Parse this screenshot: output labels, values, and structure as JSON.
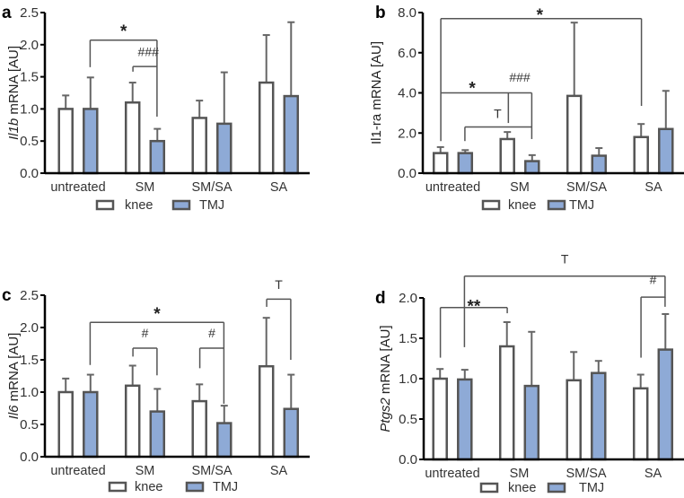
{
  "colors": {
    "knee": "#ffffff",
    "tmj": "#8eaad6",
    "bar_stroke": "#555555",
    "error": "#666666",
    "axis": "#000000"
  },
  "chart_data": [
    {
      "panel": "a",
      "type": "bar",
      "ylabel_italic": "Il1b",
      "ylabel_rest": " mRNA [AU]",
      "ylim": [
        0,
        2.5
      ],
      "yticks": [
        0,
        0.5,
        1.0,
        1.5,
        2.0,
        2.5
      ],
      "ytick_labels": [
        "0.0",
        "0.5",
        "1.0",
        "1.5",
        "2.0",
        "2.5"
      ],
      "categories": [
        "untreated",
        "SM",
        "SM/SA",
        "SA"
      ],
      "series": [
        {
          "name": "knee",
          "values": [
            1.0,
            1.1,
            0.86,
            1.41
          ],
          "error_top": [
            1.21,
            1.41,
            1.13,
            2.15
          ]
        },
        {
          "name": "TMJ",
          "values": [
            1.0,
            0.5,
            0.77,
            1.2
          ],
          "error_top": [
            1.49,
            0.69,
            1.57,
            2.35
          ]
        }
      ],
      "legend": [
        "knee",
        "TMJ"
      ],
      "annotations": [
        {
          "label": "*",
          "x1": 0.18,
          "x2": 1.18,
          "y": 2.07,
          "y1": 1.65,
          "y2": 0.88,
          "ly": 2.25,
          "style": "star"
        },
        {
          "label": "###",
          "x1": 0.82,
          "x2": 1.18,
          "y": 1.66,
          "y1": 1.58,
          "y2": null,
          "ly": 1.82,
          "lx": 1.05
        }
      ]
    },
    {
      "panel": "b",
      "type": "bar",
      "ylabel_italic": "",
      "ylabel_rest": "Il1-ra mRNA [AU]",
      "ylim": [
        0,
        8.0
      ],
      "yticks": [
        0,
        2,
        4,
        6,
        8
      ],
      "ytick_labels": [
        "0.0",
        "2.0",
        "4.0",
        "6.0",
        "8.0"
      ],
      "categories": [
        "untreated",
        "SM",
        "SM/SA",
        "SA"
      ],
      "series": [
        {
          "name": "knee",
          "values": [
            1.0,
            1.7,
            3.85,
            1.8
          ],
          "error_top": [
            1.3,
            2.05,
            7.5,
            2.45
          ]
        },
        {
          "name": "TMJ",
          "values": [
            1.0,
            0.6,
            0.87,
            2.2
          ],
          "error_top": [
            1.15,
            0.9,
            1.25,
            4.1
          ]
        }
      ],
      "legend": [
        "knee",
        "TMJ"
      ],
      "annotations": [
        {
          "label": "*",
          "x1": -0.18,
          "x2": 2.82,
          "y": 7.7,
          "y1": 1.6,
          "y2": 3.35,
          "ly": 8.0,
          "lx": 1.3,
          "style": "star"
        },
        {
          "label": "*",
          "x1": -0.18,
          "x2": 1.18,
          "y": 4.0,
          "y1": null,
          "y2": 1.7,
          "ly": 4.35,
          "lx": 0.29,
          "style": "star"
        },
        {
          "label": "T",
          "x1": 0.18,
          "x2": 1.18,
          "y": 2.3,
          "y1": 1.6,
          "y2": null,
          "ly": 2.75,
          "lx": 0.67,
          "vx": 0.83,
          "vy1": 4.0,
          "vy2": 2.5
        },
        {
          "label": "###",
          "x1": null,
          "x2": null,
          "ly": 4.55,
          "lx": 1.0
        }
      ]
    },
    {
      "panel": "c",
      "type": "bar",
      "ylabel_italic": "Il6",
      "ylabel_rest": " mRNA [AU]",
      "ylim": [
        0,
        2.5
      ],
      "yticks": [
        0,
        0.5,
        1.0,
        1.5,
        2.0,
        2.5
      ],
      "ytick_labels": [
        "0.0",
        "0.5",
        "1.0",
        "1.5",
        "2.0",
        "2.5"
      ],
      "categories": [
        "untreated",
        "SM",
        "SM/SA",
        "SA"
      ],
      "series": [
        {
          "name": "knee",
          "values": [
            1.0,
            1.1,
            0.86,
            1.4
          ],
          "error_top": [
            1.21,
            1.41,
            1.12,
            2.15
          ]
        },
        {
          "name": "TMJ",
          "values": [
            1.0,
            0.7,
            0.52,
            0.74
          ],
          "error_top": [
            1.27,
            1.05,
            0.79,
            1.27
          ]
        }
      ],
      "legend": [
        "knee",
        "TMJ"
      ],
      "annotations": [
        {
          "label": "*",
          "x1": 0.18,
          "x2": 2.18,
          "y": 2.08,
          "y1": 1.42,
          "y2": 0.82,
          "ly": 2.25,
          "style": "star"
        },
        {
          "label": "#",
          "x1": 0.82,
          "x2": 1.18,
          "y": 1.68,
          "y1": 1.55,
          "y2": 1.26,
          "ly": 1.85
        },
        {
          "label": "#",
          "x1": 1.82,
          "x2": 2.18,
          "y": 1.68,
          "y1": 1.37,
          "y2": null,
          "ly": 1.85
        },
        {
          "label": "T",
          "x1": 2.82,
          "x2": 3.18,
          "y": 2.44,
          "y1": 2.32,
          "y2": 1.5,
          "ly": 2.6
        }
      ]
    },
    {
      "panel": "d",
      "type": "bar",
      "ylabel_italic": "Ptgs2",
      "ylabel_rest": " mRNA [AU]",
      "ylim": [
        0,
        2.0
      ],
      "yticks": [
        0,
        0.5,
        1.0,
        1.5,
        2.0
      ],
      "ytick_labels": [
        "0.0",
        "0.5",
        "1.0",
        "1.5",
        "2.0"
      ],
      "categories": [
        "untreated",
        "SM",
        "SM/SA",
        "SA"
      ],
      "series": [
        {
          "name": "knee",
          "values": [
            1.0,
            1.4,
            0.98,
            0.88
          ],
          "error_top": [
            1.12,
            1.7,
            1.33,
            1.05
          ]
        },
        {
          "name": "TMJ",
          "values": [
            0.99,
            0.91,
            1.07,
            1.36
          ],
          "error_top": [
            1.11,
            1.58,
            1.22,
            1.8
          ]
        }
      ],
      "legend": [
        "knee",
        "TMJ"
      ],
      "annotations": [
        {
          "label": "T",
          "x1": 0.18,
          "x2": 3.18,
          "y": 2.27,
          "y1": 1.39,
          "y2": 2.0,
          "ly": 2.43
        },
        {
          "label": "**",
          "x1": -0.18,
          "x2": 0.82,
          "y": 1.88,
          "y1": 1.26,
          "y2": 1.81,
          "ly": 1.93,
          "lx": 0.32,
          "style": "star"
        },
        {
          "label": "#",
          "x1": 2.82,
          "x2": 3.18,
          "y": 2.01,
          "y1": 1.26,
          "y2": 1.89,
          "ly": 2.17
        }
      ]
    }
  ]
}
